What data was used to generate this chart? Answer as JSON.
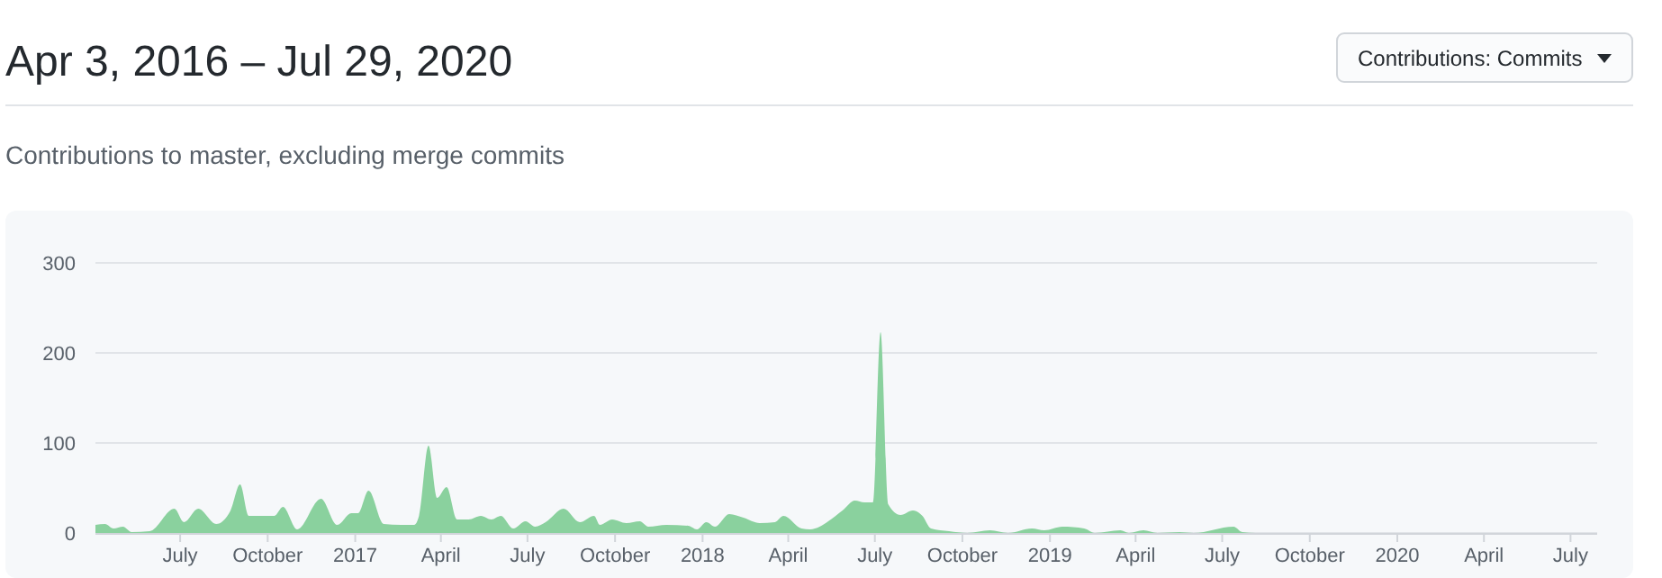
{
  "chart_data": {
    "type": "area",
    "title": "Apr 3, 2016 – Jul 29, 2020",
    "subtitle": "Contributions to master, excluding merge commits",
    "annotations": [
      "Contributions: Commits"
    ],
    "x": [
      "2016-04-03",
      "2016-04-13",
      "2016-04-22",
      "2016-05-02",
      "2016-05-11",
      "2016-05-30",
      "2016-06-25",
      "2016-07-05",
      "2016-07-20",
      "2016-08-08",
      "2016-08-23",
      "2016-09-02",
      "2016-09-11",
      "2016-10-08",
      "2016-10-17",
      "2016-11-01",
      "2016-11-26",
      "2016-12-13",
      "2016-12-28",
      "2017-01-04",
      "2017-01-15",
      "2017-01-31",
      "2017-02-18",
      "2017-03-04",
      "2017-03-09",
      "2017-03-19",
      "2017-03-28",
      "2017-04-07",
      "2017-04-18",
      "2017-04-30",
      "2017-05-13",
      "2017-05-24",
      "2017-06-03",
      "2017-06-16",
      "2017-06-29",
      "2017-07-09",
      "2017-07-20",
      "2017-08-08",
      "2017-08-25",
      "2017-09-09",
      "2017-09-15",
      "2017-09-28",
      "2017-10-13",
      "2017-10-27",
      "2017-11-05",
      "2017-11-24",
      "2017-12-17",
      "2017-12-26",
      "2018-01-05",
      "2018-01-14",
      "2018-01-29",
      "2018-02-13",
      "2018-03-02",
      "2018-03-18",
      "2018-03-27",
      "2018-04-15",
      "2018-04-24",
      "2018-05-04",
      "2018-05-13",
      "2018-05-28",
      "2018-06-10",
      "2018-06-20",
      "2018-06-29",
      "2018-07-07",
      "2018-07-15",
      "2018-07-28",
      "2018-08-10",
      "2018-08-20",
      "2018-08-29",
      "2018-09-17",
      "2018-10-06",
      "2018-10-30",
      "2018-11-18",
      "2018-12-13",
      "2018-12-26",
      "2019-01-14",
      "2019-02-06",
      "2019-02-17",
      "2019-03-16",
      "2019-03-25",
      "2019-04-09",
      "2019-04-24",
      "2019-05-17",
      "2019-06-01",
      "2019-07-13",
      "2019-07-22",
      "2019-08-05",
      "2019-12-01",
      "2020-07-29"
    ],
    "series": [
      {
        "color": "#8ad19e",
        "values": [
          9,
          10,
          5,
          7,
          1,
          2,
          27,
          12,
          27,
          10,
          25,
          54,
          19,
          19,
          29,
          4,
          38,
          9,
          22,
          22,
          47,
          10,
          9,
          9,
          19,
          97,
          39,
          51,
          15,
          15,
          19,
          15,
          19,
          5,
          13,
          7,
          12,
          27,
          12,
          19,
          9,
          15,
          11,
          13,
          7,
          9,
          8,
          4,
          12,
          7,
          21,
          17,
          11,
          12,
          19,
          5,
          4,
          7,
          13,
          25,
          36,
          34,
          34,
          223,
          32,
          20,
          25,
          19,
          5,
          2,
          0,
          3,
          0,
          5,
          3,
          7,
          5,
          0,
          3,
          0,
          3,
          0,
          1,
          0,
          7,
          1,
          0,
          0,
          0
        ]
      }
    ],
    "xlim": [
      "2016-04-03",
      "2020-07-29"
    ],
    "xticks": [
      {
        "value": "2016-07-01",
        "label": "July"
      },
      {
        "value": "2016-10-01",
        "label": "October"
      },
      {
        "value": "2017-01-01",
        "label": "2017"
      },
      {
        "value": "2017-04-01",
        "label": "April"
      },
      {
        "value": "2017-07-01",
        "label": "July"
      },
      {
        "value": "2017-10-01",
        "label": "October"
      },
      {
        "value": "2018-01-01",
        "label": "2018"
      },
      {
        "value": "2018-04-01",
        "label": "April"
      },
      {
        "value": "2018-07-01",
        "label": "July"
      },
      {
        "value": "2018-10-01",
        "label": "October"
      },
      {
        "value": "2019-01-01",
        "label": "2019"
      },
      {
        "value": "2019-04-01",
        "label": "April"
      },
      {
        "value": "2019-07-01",
        "label": "July"
      },
      {
        "value": "2019-10-01",
        "label": "October"
      },
      {
        "value": "2020-01-01",
        "label": "2020"
      },
      {
        "value": "2020-04-01",
        "label": "April"
      },
      {
        "value": "2020-07-01",
        "label": "July"
      }
    ],
    "ylim": [
      0,
      300
    ],
    "yticks": [
      0,
      100,
      200,
      300
    ],
    "grid": "y"
  }
}
